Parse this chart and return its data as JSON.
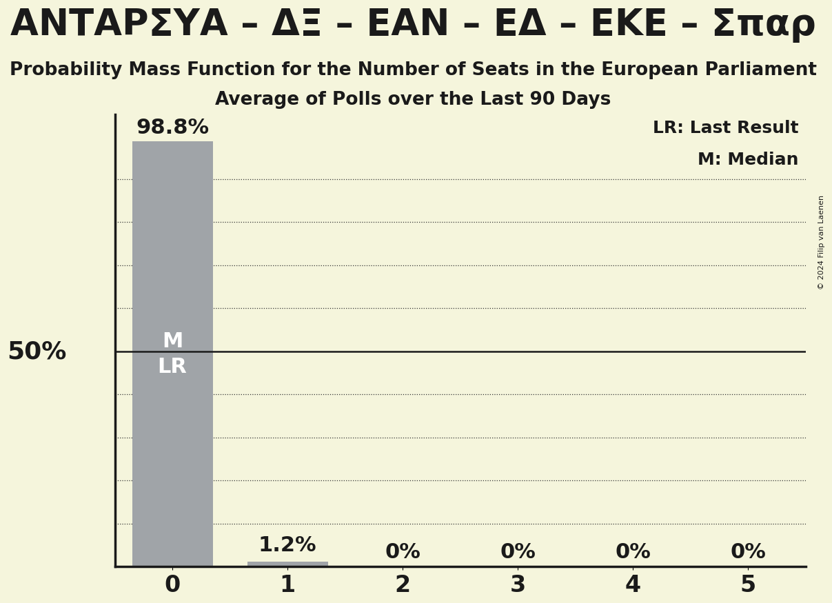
{
  "title": "ΑΝΤΑΡΣΥΑ – ΔΞ – ΕΑΝ – ΕΔ – ΕΚΕ – Σπαρ",
  "subtitle1": "Probability Mass Function for the Number of Seats in the European Parliament",
  "subtitle2": "Average of Polls over the Last 90 Days",
  "copyright": "© 2024 Filip van Laenen",
  "categories": [
    0,
    1,
    2,
    3,
    4,
    5
  ],
  "values": [
    0.988,
    0.012,
    0.0,
    0.0,
    0.0,
    0.0
  ],
  "labels": [
    "98.8%",
    "1.2%",
    "0%",
    "0%",
    "0%",
    "0%"
  ],
  "bar_color": "#a0a4a8",
  "background_color": "#f5f5dc",
  "text_color": "#1a1a1a",
  "ylabel_50": "50%",
  "legend_lr": "LR: Last Result",
  "legend_m": "M: Median",
  "ylim": [
    0,
    1.05
  ],
  "fifty_pct_line": 0.5,
  "gridline_positions": [
    0.1,
    0.2,
    0.3,
    0.4,
    0.6,
    0.7,
    0.8,
    0.9
  ],
  "title_fontsize": 38,
  "subtitle1_fontsize": 19,
  "subtitle2_fontsize": 19,
  "legend_fontsize": 18,
  "bar_label_fontsize": 22,
  "fifty_label_fontsize": 26,
  "tick_fontsize": 24
}
